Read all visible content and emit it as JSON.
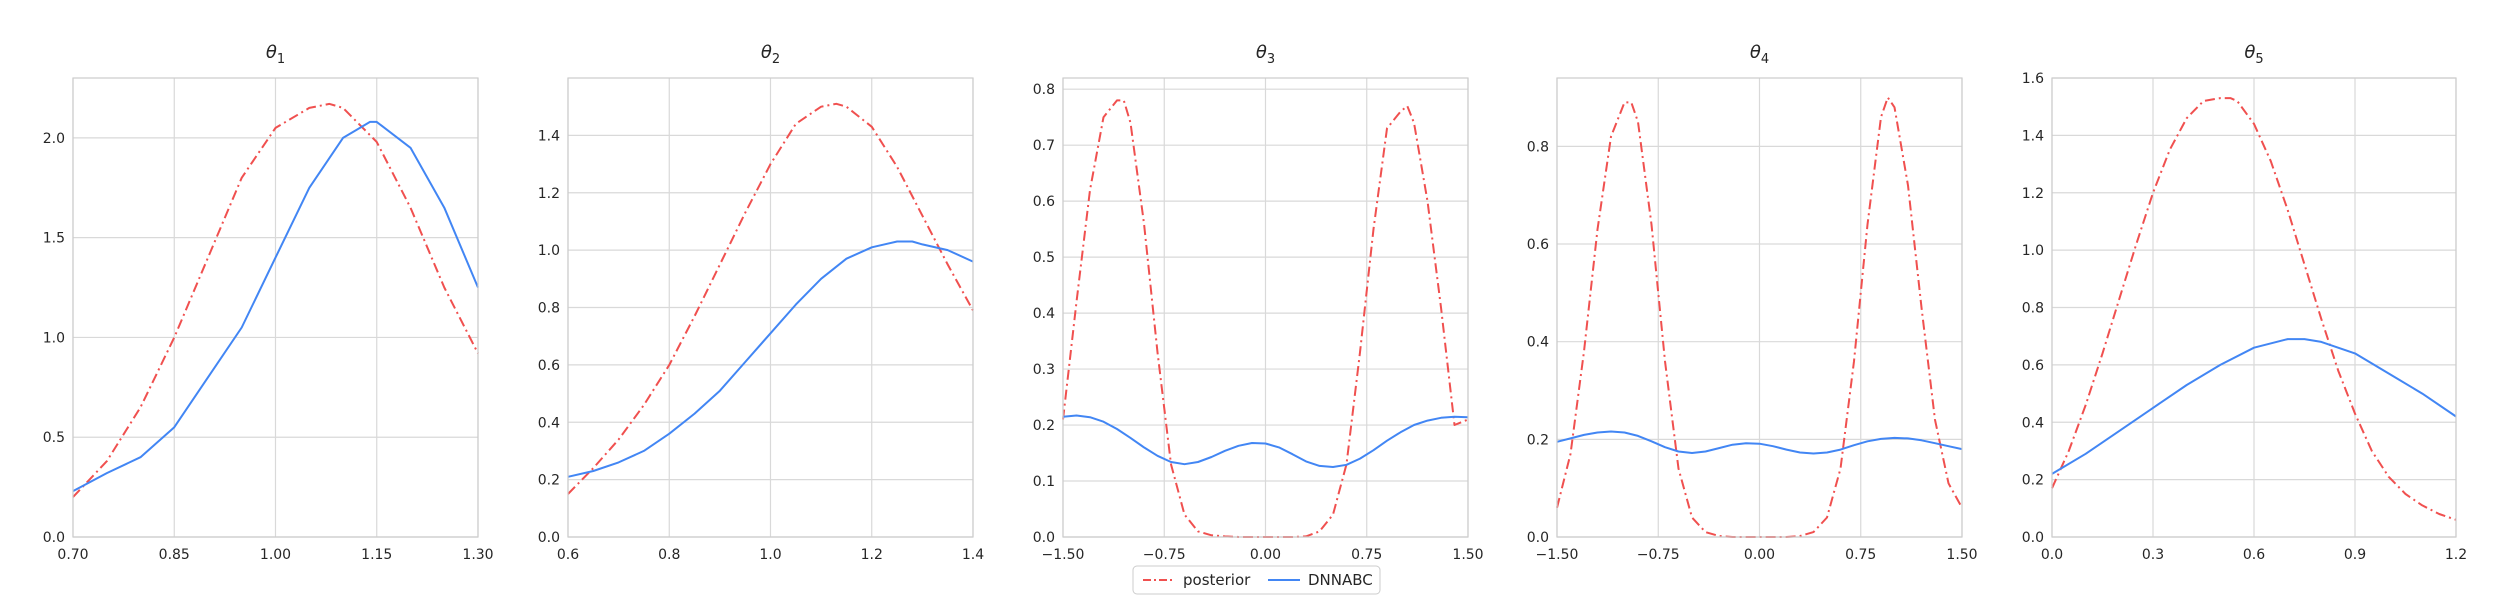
{
  "chart_data": [
    {
      "type": "line",
      "title_symbol": "θ",
      "title_sub": "1",
      "xlim": [
        0.7,
        1.3
      ],
      "ylim": [
        0,
        2.3
      ],
      "xticks": [
        0.7,
        0.85,
        1.0,
        1.15,
        1.3
      ],
      "xtick_labels": [
        "0.70",
        "0.85",
        "1.00",
        "1.15",
        "1.30"
      ],
      "yticks": [
        0,
        0.5,
        1.0,
        1.5,
        2.0
      ],
      "ytick_labels": [
        "0.0",
        "0.5",
        "1.0",
        "1.5",
        "2.0"
      ],
      "series": [
        {
          "name": "posterior",
          "color": "#f0504f",
          "dash": "dashdot",
          "x": [
            0.7,
            0.75,
            0.8,
            0.85,
            0.9,
            0.95,
            1.0,
            1.05,
            1.08,
            1.1,
            1.15,
            1.2,
            1.25,
            1.3
          ],
          "y": [
            0.2,
            0.38,
            0.65,
            1.0,
            1.4,
            1.8,
            2.05,
            2.15,
            2.17,
            2.15,
            1.98,
            1.65,
            1.25,
            0.92
          ]
        },
        {
          "name": "DNNABC",
          "color": "#4286f4",
          "dash": "solid",
          "x": [
            0.7,
            0.75,
            0.8,
            0.85,
            0.9,
            0.95,
            1.0,
            1.05,
            1.1,
            1.14,
            1.15,
            1.2,
            1.25,
            1.3
          ],
          "y": [
            0.23,
            0.32,
            0.4,
            0.55,
            0.8,
            1.05,
            1.4,
            1.75,
            2.0,
            2.08,
            2.08,
            1.95,
            1.65,
            1.25
          ]
        }
      ]
    },
    {
      "type": "line",
      "title_symbol": "θ",
      "title_sub": "2",
      "xlim": [
        0.6,
        1.4
      ],
      "ylim": [
        0,
        1.6
      ],
      "xticks": [
        0.6,
        0.8,
        1.0,
        1.2,
        1.4
      ],
      "xtick_labels": [
        "0.6",
        "0.8",
        "1.0",
        "1.2",
        "1.4"
      ],
      "yticks": [
        0,
        0.2,
        0.4,
        0.6,
        0.8,
        1.0,
        1.2,
        1.4
      ],
      "ytick_labels": [
        "0.0",
        "0.2",
        "0.4",
        "0.6",
        "0.8",
        "1.0",
        "1.2",
        "1.4"
      ],
      "series": [
        {
          "name": "posterior",
          "color": "#f0504f",
          "dash": "dashdot",
          "x": [
            0.6,
            0.65,
            0.7,
            0.75,
            0.8,
            0.85,
            0.9,
            0.95,
            1.0,
            1.05,
            1.1,
            1.13,
            1.15,
            1.2,
            1.25,
            1.3,
            1.35,
            1.4
          ],
          "y": [
            0.15,
            0.24,
            0.34,
            0.46,
            0.6,
            0.77,
            0.95,
            1.13,
            1.3,
            1.44,
            1.5,
            1.51,
            1.5,
            1.43,
            1.29,
            1.12,
            0.95,
            0.79
          ]
        },
        {
          "name": "DNNABC",
          "color": "#4286f4",
          "dash": "solid",
          "x": [
            0.6,
            0.65,
            0.7,
            0.75,
            0.8,
            0.85,
            0.9,
            0.95,
            1.0,
            1.05,
            1.1,
            1.15,
            1.2,
            1.25,
            1.28,
            1.3,
            1.35,
            1.4
          ],
          "y": [
            0.21,
            0.23,
            0.26,
            0.3,
            0.36,
            0.43,
            0.51,
            0.61,
            0.71,
            0.81,
            0.9,
            0.97,
            1.01,
            1.03,
            1.03,
            1.02,
            1.0,
            0.96
          ]
        }
      ]
    },
    {
      "type": "line",
      "title_symbol": "θ",
      "title_sub": "3",
      "xlim": [
        -1.5,
        1.5
      ],
      "ylim": [
        0,
        0.82
      ],
      "xticks": [
        -1.5,
        -0.75,
        0.0,
        0.75,
        1.5
      ],
      "xtick_labels": [
        "−1.50",
        "−0.75",
        "0.00",
        "0.75",
        "1.50"
      ],
      "yticks": [
        0,
        0.1,
        0.2,
        0.3,
        0.4,
        0.5,
        0.6,
        0.7,
        0.8
      ],
      "ytick_labels": [
        "0.0",
        "0.1",
        "0.2",
        "0.3",
        "0.4",
        "0.5",
        "0.6",
        "0.7",
        "0.8"
      ],
      "series": [
        {
          "name": "posterior",
          "color": "#f0504f",
          "dash": "dashdot",
          "x": [
            -1.5,
            -1.4,
            -1.3,
            -1.2,
            -1.1,
            -1.05,
            -1.0,
            -0.9,
            -0.8,
            -0.7,
            -0.6,
            -0.5,
            -0.4,
            -0.3,
            -0.2,
            -0.1,
            0.0,
            0.1,
            0.2,
            0.3,
            0.4,
            0.5,
            0.6,
            0.7,
            0.8,
            0.9,
            1.0,
            1.05,
            1.1,
            1.2,
            1.3,
            1.4,
            1.5
          ],
          "y": [
            0.21,
            0.42,
            0.62,
            0.75,
            0.78,
            0.78,
            0.74,
            0.56,
            0.33,
            0.13,
            0.04,
            0.01,
            0.003,
            0.001,
            0.0,
            0.0,
            0.0,
            0.0,
            0.0,
            0.001,
            0.01,
            0.04,
            0.13,
            0.33,
            0.55,
            0.73,
            0.76,
            0.77,
            0.74,
            0.6,
            0.41,
            0.2,
            0.21
          ]
        },
        {
          "name": "DNNABC",
          "color": "#4286f4",
          "dash": "solid",
          "x": [
            -1.5,
            -1.4,
            -1.3,
            -1.2,
            -1.1,
            -1.0,
            -0.9,
            -0.8,
            -0.7,
            -0.6,
            -0.5,
            -0.4,
            -0.3,
            -0.2,
            -0.1,
            0.0,
            0.1,
            0.2,
            0.3,
            0.4,
            0.5,
            0.6,
            0.7,
            0.8,
            0.9,
            1.0,
            1.1,
            1.2,
            1.3,
            1.4,
            1.5
          ],
          "y": [
            0.215,
            0.217,
            0.214,
            0.206,
            0.193,
            0.177,
            0.16,
            0.145,
            0.134,
            0.13,
            0.134,
            0.143,
            0.154,
            0.163,
            0.168,
            0.167,
            0.16,
            0.148,
            0.135,
            0.127,
            0.125,
            0.129,
            0.14,
            0.155,
            0.172,
            0.187,
            0.2,
            0.208,
            0.213,
            0.215,
            0.214
          ]
        }
      ]
    },
    {
      "type": "line",
      "title_symbol": "θ",
      "title_sub": "4",
      "xlim": [
        -1.5,
        1.5
      ],
      "ylim": [
        0,
        0.94
      ],
      "xticks": [
        -1.5,
        -0.75,
        0.0,
        0.75,
        1.5
      ],
      "xtick_labels": [
        "−1.50",
        "−0.75",
        "0.00",
        "0.75",
        "1.50"
      ],
      "yticks": [
        0,
        0.2,
        0.4,
        0.6,
        0.8
      ],
      "ytick_labels": [
        "0.0",
        "0.2",
        "0.4",
        "0.6",
        "0.8"
      ],
      "series": [
        {
          "name": "posterior",
          "color": "#f0504f",
          "dash": "dashdot",
          "x": [
            -1.5,
            -1.4,
            -1.3,
            -1.2,
            -1.1,
            -1.0,
            -0.95,
            -0.9,
            -0.8,
            -0.7,
            -0.6,
            -0.5,
            -0.4,
            -0.3,
            -0.2,
            -0.1,
            0.0,
            0.1,
            0.2,
            0.3,
            0.4,
            0.5,
            0.6,
            0.7,
            0.8,
            0.9,
            0.95,
            1.0,
            1.1,
            1.2,
            1.3,
            1.4,
            1.5
          ],
          "y": [
            0.06,
            0.17,
            0.38,
            0.63,
            0.82,
            0.89,
            0.89,
            0.85,
            0.64,
            0.36,
            0.14,
            0.04,
            0.01,
            0.002,
            0.0,
            0.0,
            0.0,
            0.0,
            0.0,
            0.002,
            0.01,
            0.04,
            0.14,
            0.36,
            0.64,
            0.86,
            0.9,
            0.88,
            0.72,
            0.47,
            0.24,
            0.11,
            0.06
          ]
        },
        {
          "name": "DNNABC",
          "color": "#4286f4",
          "dash": "solid",
          "x": [
            -1.5,
            -1.4,
            -1.3,
            -1.2,
            -1.1,
            -1.0,
            -0.9,
            -0.8,
            -0.7,
            -0.6,
            -0.5,
            -0.4,
            -0.3,
            -0.2,
            -0.1,
            0.0,
            0.1,
            0.2,
            0.3,
            0.4,
            0.5,
            0.6,
            0.7,
            0.8,
            0.9,
            1.0,
            1.1,
            1.2,
            1.3,
            1.4,
            1.5
          ],
          "y": [
            0.195,
            0.202,
            0.209,
            0.214,
            0.216,
            0.214,
            0.207,
            0.196,
            0.184,
            0.175,
            0.172,
            0.175,
            0.182,
            0.189,
            0.192,
            0.191,
            0.186,
            0.179,
            0.173,
            0.171,
            0.173,
            0.179,
            0.188,
            0.196,
            0.201,
            0.203,
            0.202,
            0.198,
            0.192,
            0.186,
            0.18
          ]
        }
      ]
    },
    {
      "type": "line",
      "title_symbol": "θ",
      "title_sub": "5",
      "xlim": [
        0.0,
        1.2
      ],
      "ylim": [
        0,
        1.6
      ],
      "xticks": [
        0.0,
        0.3,
        0.6,
        0.9,
        1.2
      ],
      "xtick_labels": [
        "0.0",
        "0.3",
        "0.6",
        "0.9",
        "1.2"
      ],
      "yticks": [
        0,
        0.2,
        0.4,
        0.6,
        0.8,
        1.0,
        1.2,
        1.4,
        1.6
      ],
      "ytick_labels": [
        "0.0",
        "0.2",
        "0.4",
        "0.6",
        "0.8",
        "1.0",
        "1.2",
        "1.4",
        "1.6"
      ],
      "series": [
        {
          "name": "posterior",
          "color": "#f0504f",
          "dash": "dashdot",
          "x": [
            0.0,
            0.05,
            0.1,
            0.15,
            0.2,
            0.25,
            0.3,
            0.35,
            0.4,
            0.45,
            0.5,
            0.53,
            0.55,
            0.6,
            0.65,
            0.7,
            0.75,
            0.8,
            0.85,
            0.9,
            0.95,
            1.0,
            1.05,
            1.1,
            1.15,
            1.2
          ],
          "y": [
            0.17,
            0.3,
            0.46,
            0.64,
            0.83,
            1.02,
            1.2,
            1.35,
            1.46,
            1.52,
            1.53,
            1.53,
            1.52,
            1.44,
            1.31,
            1.14,
            0.95,
            0.76,
            0.58,
            0.43,
            0.3,
            0.21,
            0.15,
            0.11,
            0.08,
            0.06
          ]
        },
        {
          "name": "DNNABC",
          "color": "#4286f4",
          "dash": "solid",
          "x": [
            0.0,
            0.1,
            0.2,
            0.3,
            0.4,
            0.5,
            0.6,
            0.7,
            0.75,
            0.8,
            0.9,
            1.0,
            1.1,
            1.2
          ],
          "y": [
            0.22,
            0.29,
            0.37,
            0.45,
            0.53,
            0.6,
            0.66,
            0.69,
            0.69,
            0.68,
            0.64,
            0.57,
            0.5,
            0.42
          ]
        }
      ]
    }
  ],
  "legend": {
    "placement": "bottom-center",
    "items": [
      {
        "label": "posterior",
        "color": "#f0504f",
        "dash": "dashdot"
      },
      {
        "label": "DNNABC",
        "color": "#4286f4",
        "dash": "solid"
      }
    ]
  }
}
